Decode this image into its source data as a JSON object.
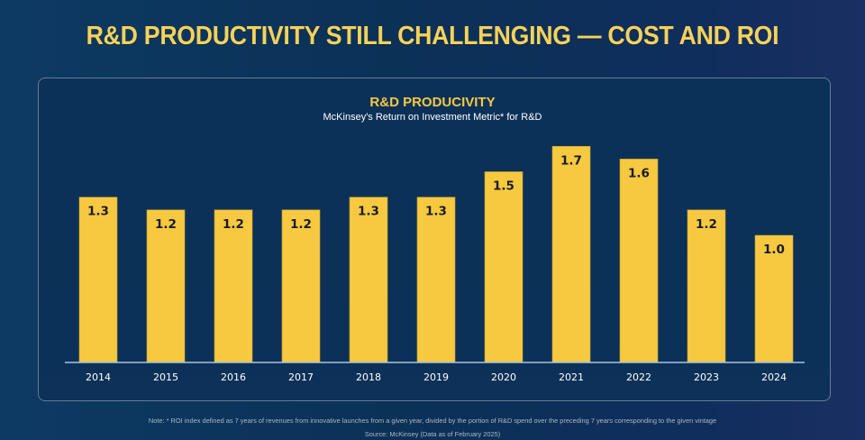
{
  "header": {
    "title": "R&D PRODUCTIVITY STILL CHALLENGING — COST AND ROI"
  },
  "footer": {
    "note": "Note: * ROI index defined as 7 years of revenues from innovative launches from a given year, divided by the portion of R&D spend over the preceding 7 years corresponding to the given vintage",
    "source": "Source: McKinsey (Data as of February 2025)"
  },
  "colors": {
    "bar": "#f6c940",
    "axis": "#a9c3dc",
    "label": "#1a1a1a",
    "tick": "#ffffff"
  },
  "chart_data": {
    "type": "bar",
    "title": "R&D PRODUCIVITY",
    "subtitle": "McKinsey's Return on Investment Metric* for R&D",
    "xlabel": "",
    "ylabel": "",
    "categories": [
      "2014",
      "2015",
      "2016",
      "2017",
      "2018",
      "2019",
      "2020",
      "2021",
      "2022",
      "2023",
      "2024"
    ],
    "values": [
      1.3,
      1.2,
      1.2,
      1.2,
      1.3,
      1.3,
      1.5,
      1.7,
      1.6,
      1.2,
      1.0
    ],
    "data_labels": [
      "1.3",
      "1.2",
      "1.2",
      "1.2",
      "1.3",
      "1.3",
      "1.5",
      "1.7",
      "1.6",
      "1.2",
      "1.0"
    ],
    "ylim": [
      0,
      1.7
    ],
    "grid": false,
    "legend": "none"
  }
}
